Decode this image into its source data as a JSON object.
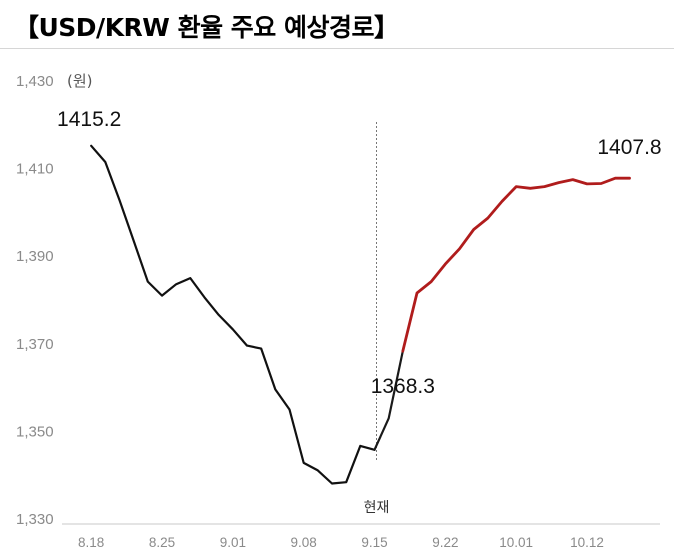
{
  "title": "【USD/KRW 환율 주요 예상경로】",
  "chart_data": {
    "type": "line",
    "y_unit": "(원)",
    "ylim": [
      1330,
      1430
    ],
    "y_ticks": [
      "1,330",
      "1,350",
      "1,370",
      "1,390",
      "1,410",
      "1,430"
    ],
    "y_tick_values": [
      1330,
      1350,
      1370,
      1390,
      1410,
      1430
    ],
    "x_ticks": [
      "8.18",
      "8.25",
      "9.01",
      "9.08",
      "9.15",
      "9.22",
      "10.01",
      "10.12"
    ],
    "x_tick_index": [
      0,
      5,
      10,
      15,
      20,
      25,
      30,
      35
    ],
    "x_index_range": [
      -1,
      41
    ],
    "now_label": "현재",
    "now_index": 20,
    "series": [
      {
        "color": "#111111",
        "x": [
          0,
          1,
          2,
          3,
          4,
          5,
          6,
          7,
          8,
          9,
          10,
          11,
          12,
          13,
          14,
          15,
          16,
          17,
          18,
          19,
          20
        ],
        "values": [
          1415.2,
          1411.5,
          1402.8,
          1393.5,
          1384.2,
          1381.0,
          1383.6,
          1385.0,
          1380.6,
          1376.6,
          1373.3,
          1369.6,
          1368.9,
          1359.6,
          1355.0,
          1342.8,
          1341.1,
          1338.1,
          1338.4,
          1346.7,
          1345.8
        ]
      },
      {
        "color": "#1a1a1a",
        "x": [
          20,
          21,
          22
        ],
        "values": [
          1345.8,
          1353.0,
          1368.3
        ]
      },
      {
        "color": "#b01c1c",
        "x": [
          22,
          23,
          24,
          25,
          26,
          27,
          28,
          29,
          30,
          31,
          32,
          33,
          34,
          35,
          36,
          37,
          38
        ],
        "values": [
          1368.3,
          1381.6,
          1384.2,
          1388.2,
          1391.7,
          1396.1,
          1398.7,
          1402.5,
          1405.9,
          1405.5,
          1405.9,
          1406.8,
          1407.5,
          1406.5,
          1406.6,
          1407.8,
          1407.8
        ]
      }
    ],
    "labels": [
      {
        "text": "1415.2",
        "index": 0,
        "value": 1415.2
      },
      {
        "text": "1368.3",
        "index": 22,
        "value": 1368.3
      },
      {
        "text": "1407.8",
        "index": 38,
        "value": 1407.8
      }
    ]
  }
}
